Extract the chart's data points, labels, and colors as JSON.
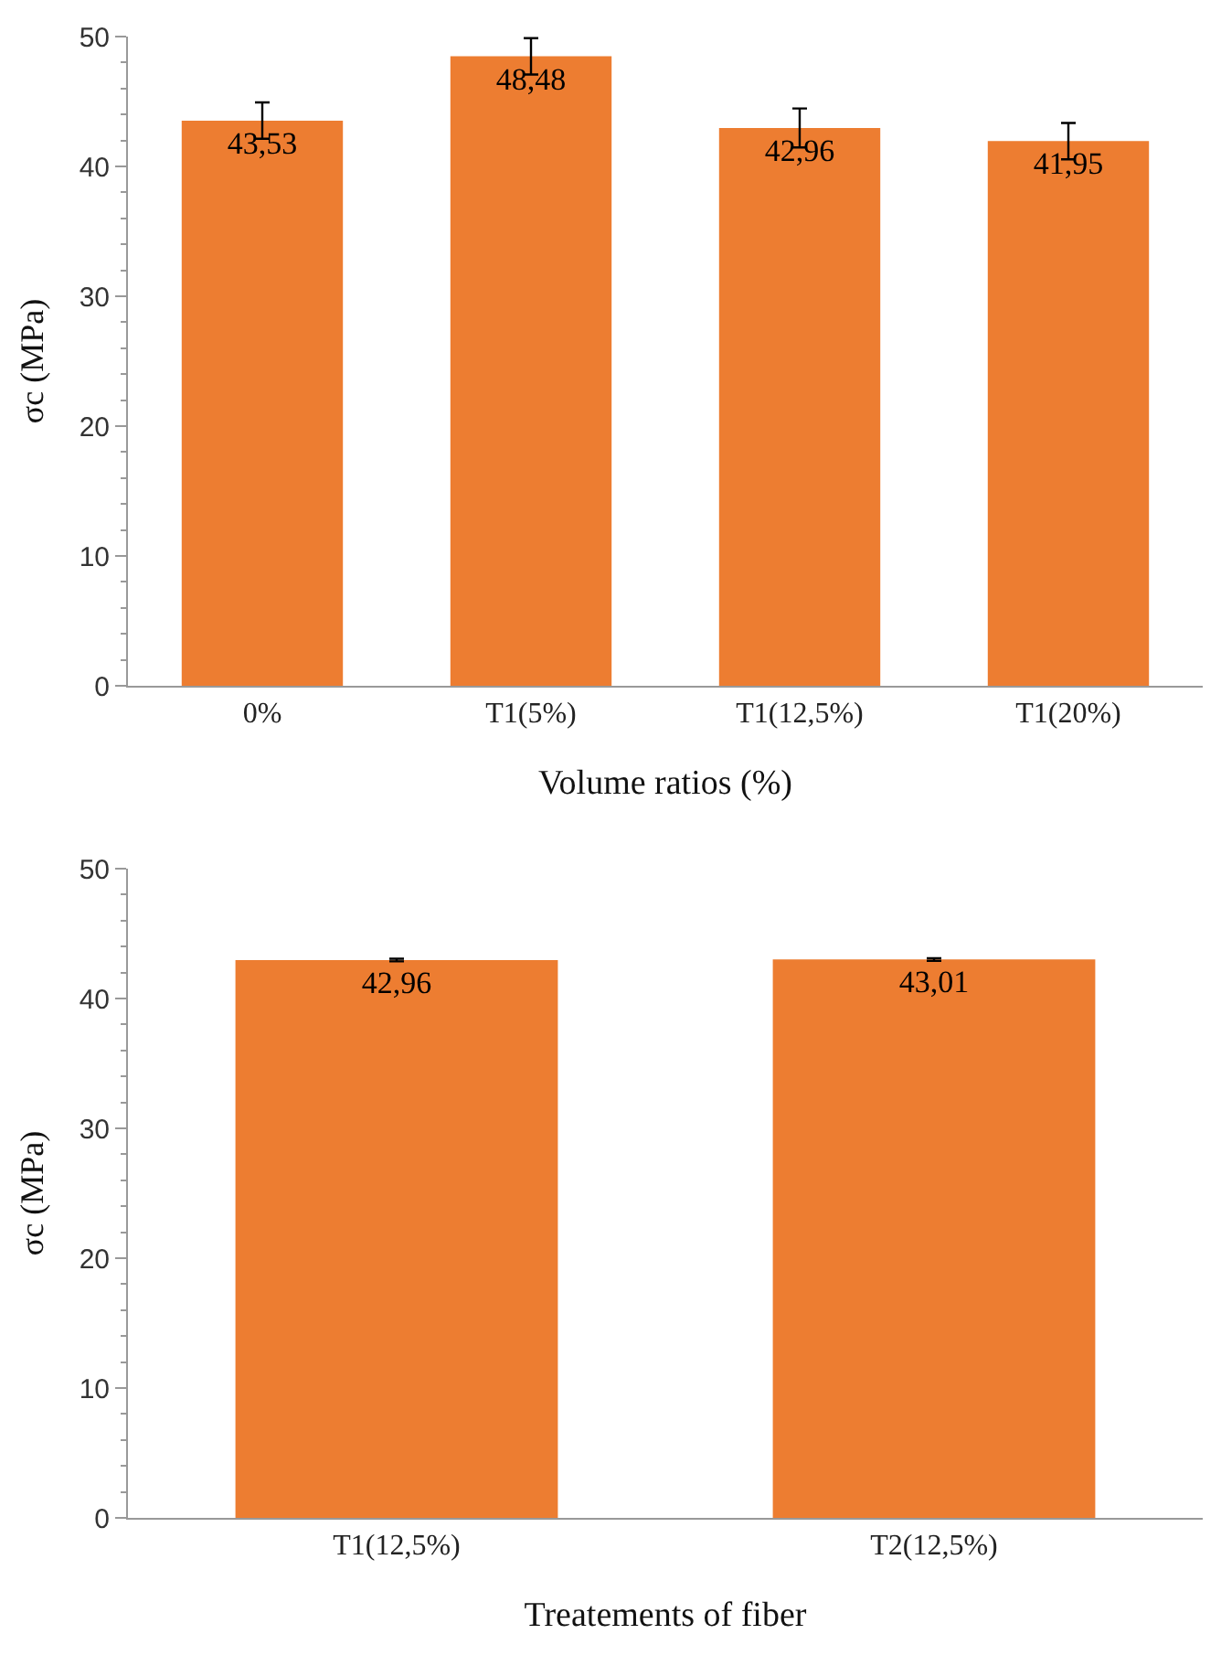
{
  "chart_data": [
    {
      "type": "bar",
      "xlabel": "Volume ratios (%)",
      "ylabel": "σc (MPa)",
      "categories": [
        "0%",
        "T1(5%)",
        "T1(12,5%)",
        "T1(20%)"
      ],
      "values": [
        43.53,
        48.48,
        42.96,
        41.95
      ],
      "value_labels": [
        "43,53",
        "48,48",
        "42,96",
        "41,95"
      ],
      "errors": [
        1.4,
        1.4,
        1.5,
        1.4
      ],
      "color": "#ed7d31",
      "ylim": [
        0,
        50
      ],
      "yticks": [
        0,
        10,
        20,
        30,
        40,
        50
      ],
      "grid": false
    },
    {
      "type": "bar",
      "xlabel": "Treatements of fiber",
      "ylabel": "σc (MPa)",
      "categories": [
        "T1(12,5%)",
        "T2(12,5%)"
      ],
      "values": [
        42.96,
        43.01
      ],
      "value_labels": [
        "42,96",
        "43,01"
      ],
      "errors": [
        0.1,
        0.1
      ],
      "color": "#ed7d31",
      "ylim": [
        0,
        50
      ],
      "yticks": [
        0,
        10,
        20,
        30,
        40,
        50
      ],
      "grid": false
    }
  ]
}
